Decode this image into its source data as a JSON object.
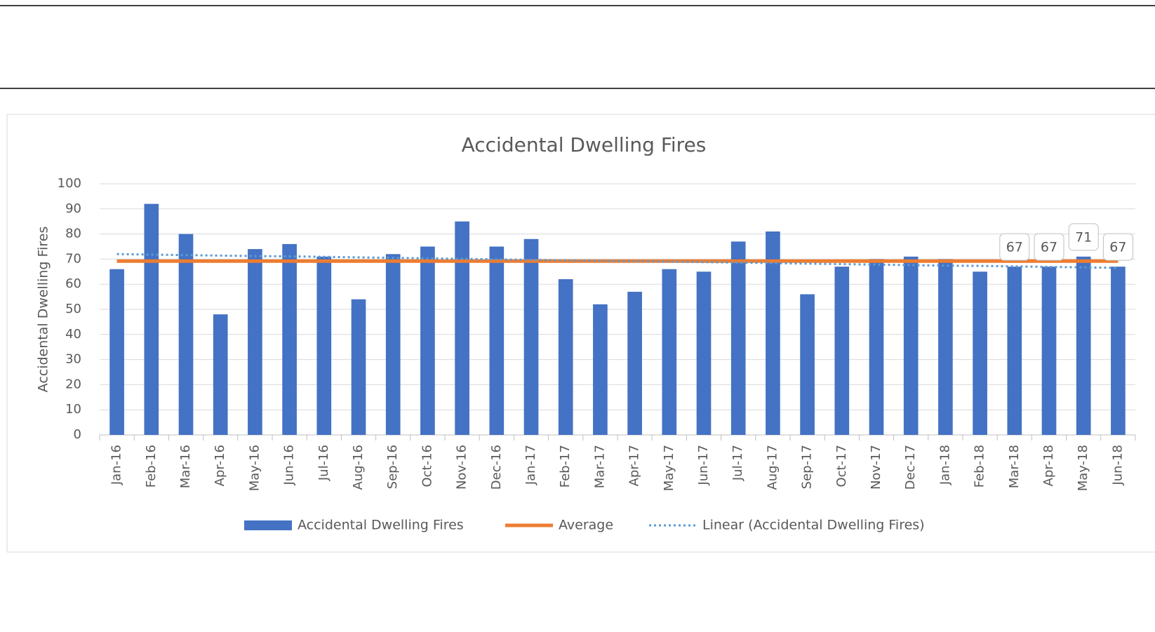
{
  "chart_data": {
    "type": "bar",
    "title": "Accidental Dwelling Fires",
    "ylabel": "Accidental Dwelling Fires",
    "categories": [
      "Jan-16",
      "Feb-16",
      "Mar-16",
      "Apr-16",
      "May-16",
      "Jun-16",
      "Jul-16",
      "Aug-16",
      "Sep-16",
      "Oct-16",
      "Nov-16",
      "Dec-16",
      "Jan-17",
      "Feb-17",
      "Mar-17",
      "Apr-17",
      "May-17",
      "Jun-17",
      "Jul-17",
      "Aug-17",
      "Sep-17",
      "Oct-17",
      "Nov-17",
      "Dec-17",
      "Jan-18",
      "Feb-18",
      "Mar-18",
      "Apr-18",
      "May-18",
      "Jun-18"
    ],
    "series": [
      {
        "name": "Accidental Dwelling Fires",
        "type": "bar",
        "color": "#4472c4",
        "values": [
          66,
          92,
          80,
          48,
          74,
          76,
          71,
          54,
          72,
          75,
          85,
          75,
          78,
          62,
          52,
          57,
          66,
          65,
          77,
          81,
          56,
          67,
          70,
          71,
          70,
          65,
          67,
          67,
          71,
          67
        ]
      },
      {
        "name": "Average",
        "type": "line",
        "color": "#ed7d31",
        "values": [
          69.2,
          69.2,
          69.2,
          69.2,
          69.2,
          69.2,
          69.2,
          69.2,
          69.2,
          69.2,
          69.2,
          69.2,
          69.2,
          69.2,
          69.2,
          69.2,
          69.2,
          69.2,
          69.2,
          69.2,
          69.2,
          69.2,
          69.2,
          69.2,
          69.2,
          69.2,
          69.2,
          69.2,
          69.2,
          69.2
        ]
      },
      {
        "name": "Linear (Accidental Dwelling Fires)",
        "type": "dotted",
        "color": "#5b9bd5",
        "values": [
          72,
          71.8,
          71.6,
          71.4,
          71.2,
          71.1,
          70.9,
          70.7,
          70.5,
          70.3,
          70.1,
          69.9,
          69.7,
          69.5,
          69.3,
          69.2,
          69,
          68.8,
          68.6,
          68.4,
          68.2,
          68,
          67.8,
          67.6,
          67.4,
          67.3,
          67.1,
          66.9,
          66.7,
          66.5
        ]
      }
    ],
    "ylim": [
      0,
      100
    ],
    "yticks": [
      0,
      10,
      20,
      30,
      40,
      50,
      60,
      70,
      80,
      90,
      100
    ],
    "grid": true,
    "legend": "bottom"
  }
}
